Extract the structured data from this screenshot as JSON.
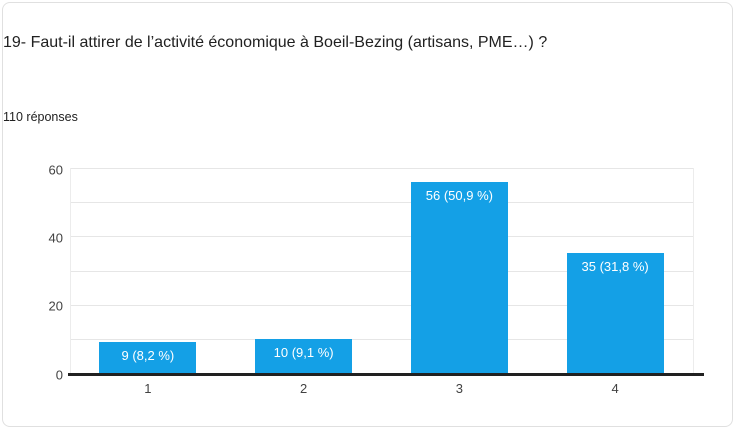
{
  "header": {
    "title": "19- Faut-il attirer de l’activité économique à Boeil-Bezing (artisans, PME…) ?",
    "responses_count": "110 réponses"
  },
  "chart_data": {
    "type": "bar",
    "title": "19- Faut-il attirer de l’activité économique à Boeil-Bezing (artisans, PME…) ?",
    "categories": [
      "1",
      "2",
      "3",
      "4"
    ],
    "values": [
      9,
      10,
      56,
      35
    ],
    "bar_labels": [
      "9 (8,2 %)",
      "10 (9,1 %)",
      "56 (50,9 %)",
      "35 (31,8 %)"
    ],
    "percentages": [
      8.2,
      9.1,
      50.9,
      31.8
    ],
    "total_responses": 110,
    "xlabel": "",
    "ylabel": "",
    "ylim": [
      0,
      60
    ],
    "yticks": [
      0,
      20,
      40,
      60
    ],
    "gridline_step": 10,
    "grid": true,
    "legend": "none",
    "bar_color": "#14a0e6",
    "bar_label_color": "#ffffff",
    "axis_line_color": "#212121",
    "gridline_color": "#e6e6e6",
    "tick_label_color": "#424242"
  }
}
